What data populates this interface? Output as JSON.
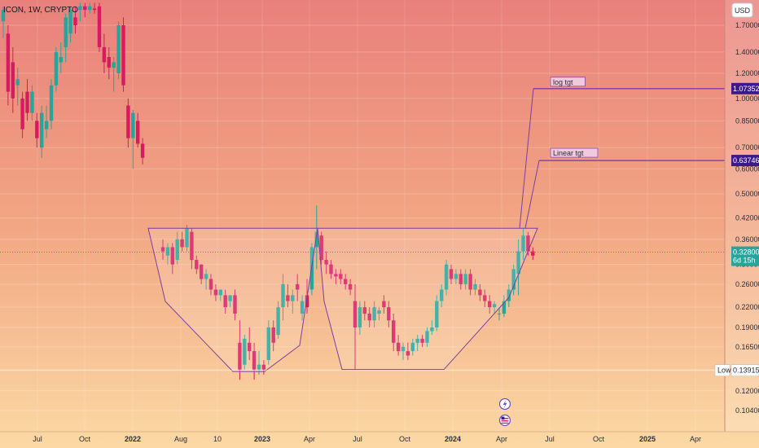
{
  "header": {
    "title": "ICON, 1W, CRYPTO",
    "currency": "USD"
  },
  "colors": {
    "up": "#26a69a",
    "down": "#d81b60",
    "pattern": "#7b3fa0",
    "tag_bg": "#3c1a8c",
    "price_tag": "#26a69a"
  },
  "chart_data": {
    "type": "candlestick",
    "title": "ICON, 1W, CRYPTO",
    "y_scale": "log",
    "ylim": [
      0.0955,
      2.0
    ],
    "y_ticks": [
      "1.70000",
      "1.40000",
      "1.20000",
      "1.00000",
      "0.85000",
      "0.70000",
      "0.60000",
      "0.50000",
      "0.42000",
      "0.36000",
      "0.30000",
      "0.26000",
      "0.22000",
      "0.19000",
      "0.16500",
      "0.14000",
      "0.12000",
      "0.10400"
    ],
    "x_ticks": [
      {
        "label": "Jul",
        "bold": false
      },
      {
        "label": "Oct",
        "bold": false
      },
      {
        "label": "2022",
        "bold": true
      },
      {
        "label": "Aug",
        "bold": false
      },
      {
        "label": "10",
        "bold": false
      },
      {
        "label": "2023",
        "bold": true
      },
      {
        "label": "Apr",
        "bold": false
      },
      {
        "label": "Jul",
        "bold": false
      },
      {
        "label": "Oct",
        "bold": false
      },
      {
        "label": "2024",
        "bold": true
      },
      {
        "label": "Apr",
        "bold": false
      },
      {
        "label": "Jul",
        "bold": false
      },
      {
        "label": "Oct",
        "bold": false
      },
      {
        "label": "2025",
        "bold": true
      },
      {
        "label": "Apr",
        "bold": false
      }
    ],
    "segments": [
      {
        "name": "2021-2022 decline",
        "candles": [
          [
            1.75,
            1.95,
            1.55,
            1.9
          ],
          [
            1.6,
            1.7,
            0.95,
            1.05
          ],
          [
            1.3,
            1.45,
            0.9,
            1.0
          ],
          [
            1.1,
            1.25,
            0.95,
            1.15
          ],
          [
            1.0,
            1.05,
            0.75,
            0.8
          ],
          [
            1.05,
            1.15,
            0.85,
            0.9
          ],
          [
            0.9,
            1.1,
            0.85,
            1.05
          ],
          [
            0.85,
            0.9,
            0.7,
            0.75
          ],
          [
            0.7,
            0.95,
            0.65,
            0.9
          ],
          [
            0.8,
            0.95,
            0.75,
            0.85
          ],
          [
            0.85,
            1.15,
            0.8,
            1.1
          ],
          [
            1.1,
            1.45,
            1.05,
            1.4
          ],
          [
            1.3,
            1.5,
            1.2,
            1.35
          ],
          [
            1.45,
            1.85,
            1.3,
            1.8
          ],
          [
            1.6,
            1.95,
            1.5,
            1.9
          ],
          [
            1.8,
            1.95,
            1.6,
            1.7
          ],
          [
            1.9,
            2.0,
            1.75,
            1.95
          ],
          [
            1.95,
            2.0,
            1.8,
            1.9
          ],
          [
            1.9,
            2.0,
            1.85,
            1.95
          ],
          [
            1.92,
            2.0,
            1.85,
            1.9
          ],
          [
            1.95,
            2.0,
            1.4,
            1.45
          ],
          [
            1.45,
            1.6,
            1.2,
            1.3
          ],
          [
            1.35,
            1.45,
            1.15,
            1.25
          ],
          [
            1.25,
            1.35,
            1.05,
            1.3
          ],
          [
            1.2,
            1.75,
            1.15,
            1.7
          ],
          [
            1.7,
            1.8,
            1.05,
            1.1
          ],
          [
            0.95,
            1.0,
            0.7,
            0.75
          ],
          [
            0.75,
            0.92,
            0.6,
            0.9
          ],
          [
            0.85,
            0.9,
            0.7,
            0.72
          ],
          [
            0.72,
            0.75,
            0.62,
            0.65
          ]
        ]
      },
      {
        "name": "cup and handle",
        "candles": [
          [
            0.34,
            0.36,
            0.31,
            0.33
          ],
          [
            0.32,
            0.35,
            0.3,
            0.34
          ],
          [
            0.34,
            0.35,
            0.28,
            0.3
          ],
          [
            0.31,
            0.38,
            0.3,
            0.36
          ],
          [
            0.36,
            0.38,
            0.33,
            0.34
          ],
          [
            0.34,
            0.4,
            0.33,
            0.39
          ],
          [
            0.38,
            0.39,
            0.29,
            0.31
          ],
          [
            0.31,
            0.32,
            0.28,
            0.29
          ],
          [
            0.3,
            0.3,
            0.26,
            0.27
          ],
          [
            0.27,
            0.29,
            0.25,
            0.28
          ],
          [
            0.27,
            0.28,
            0.24,
            0.25
          ],
          [
            0.25,
            0.26,
            0.23,
            0.24
          ],
          [
            0.24,
            0.25,
            0.23,
            0.25
          ],
          [
            0.24,
            0.25,
            0.21,
            0.22
          ],
          [
            0.23,
            0.24,
            0.22,
            0.24
          ],
          [
            0.24,
            0.25,
            0.2,
            0.21
          ],
          [
            0.17,
            0.2,
            0.13,
            0.14
          ],
          [
            0.145,
            0.18,
            0.14,
            0.175
          ],
          [
            0.17,
            0.19,
            0.15,
            0.16
          ],
          [
            0.16,
            0.17,
            0.13,
            0.14
          ],
          [
            0.14,
            0.16,
            0.135,
            0.145
          ],
          [
            0.145,
            0.15,
            0.135,
            0.14
          ],
          [
            0.15,
            0.2,
            0.145,
            0.19
          ],
          [
            0.19,
            0.2,
            0.16,
            0.17
          ],
          [
            0.18,
            0.23,
            0.175,
            0.22
          ],
          [
            0.22,
            0.28,
            0.2,
            0.26
          ],
          [
            0.24,
            0.26,
            0.22,
            0.23
          ],
          [
            0.23,
            0.25,
            0.21,
            0.24
          ],
          [
            0.26,
            0.28,
            0.23,
            0.25
          ],
          [
            0.21,
            0.24,
            0.2,
            0.23
          ],
          [
            0.24,
            0.27,
            0.21,
            0.22
          ],
          [
            0.25,
            0.35,
            0.24,
            0.34
          ],
          [
            0.34,
            0.46,
            0.29,
            0.38
          ],
          [
            0.37,
            0.38,
            0.3,
            0.31
          ],
          [
            0.31,
            0.33,
            0.28,
            0.3
          ],
          [
            0.3,
            0.31,
            0.27,
            0.28
          ],
          [
            0.28,
            0.29,
            0.26,
            0.275
          ],
          [
            0.28,
            0.29,
            0.26,
            0.27
          ],
          [
            0.27,
            0.28,
            0.25,
            0.26
          ],
          [
            0.26,
            0.27,
            0.24,
            0.25
          ],
          [
            0.23,
            0.26,
            0.14,
            0.19
          ],
          [
            0.19,
            0.23,
            0.18,
            0.22
          ],
          [
            0.22,
            0.23,
            0.2,
            0.21
          ],
          [
            0.21,
            0.22,
            0.19,
            0.2
          ],
          [
            0.2,
            0.23,
            0.19,
            0.22
          ],
          [
            0.21,
            0.22,
            0.2,
            0.215
          ],
          [
            0.23,
            0.24,
            0.21,
            0.22
          ],
          [
            0.22,
            0.23,
            0.19,
            0.2
          ],
          [
            0.2,
            0.21,
            0.16,
            0.17
          ],
          [
            0.17,
            0.18,
            0.155,
            0.16
          ],
          [
            0.16,
            0.17,
            0.15,
            0.165
          ],
          [
            0.16,
            0.17,
            0.15,
            0.155
          ],
          [
            0.16,
            0.175,
            0.155,
            0.17
          ],
          [
            0.17,
            0.18,
            0.16,
            0.175
          ],
          [
            0.175,
            0.18,
            0.165,
            0.17
          ],
          [
            0.17,
            0.19,
            0.165,
            0.185
          ],
          [
            0.185,
            0.2,
            0.18,
            0.19
          ],
          [
            0.19,
            0.24,
            0.185,
            0.23
          ],
          [
            0.23,
            0.26,
            0.22,
            0.25
          ],
          [
            0.25,
            0.31,
            0.24,
            0.3
          ],
          [
            0.29,
            0.3,
            0.26,
            0.27
          ],
          [
            0.27,
            0.29,
            0.26,
            0.28
          ],
          [
            0.28,
            0.29,
            0.25,
            0.26
          ],
          [
            0.26,
            0.29,
            0.25,
            0.28
          ],
          [
            0.28,
            0.29,
            0.24,
            0.25
          ],
          [
            0.25,
            0.27,
            0.24,
            0.26
          ],
          [
            0.25,
            0.26,
            0.23,
            0.24
          ],
          [
            0.24,
            0.25,
            0.22,
            0.23
          ],
          [
            0.23,
            0.24,
            0.21,
            0.22
          ],
          [
            0.22,
            0.23,
            0.21,
            0.225
          ],
          [
            0.21,
            0.22,
            0.2,
            0.21
          ],
          [
            0.21,
            0.24,
            0.205,
            0.23
          ],
          [
            0.23,
            0.26,
            0.22,
            0.25
          ],
          [
            0.25,
            0.3,
            0.24,
            0.29
          ],
          [
            0.28,
            0.36,
            0.24,
            0.33
          ],
          [
            0.33,
            0.39,
            0.31,
            0.37
          ],
          [
            0.37,
            0.38,
            0.32,
            0.33
          ],
          [
            0.33,
            0.34,
            0.31,
            0.32
          ]
        ]
      }
    ],
    "annotations": {
      "rim_price": 0.39,
      "cup_left_bottom": 0.138,
      "cup_right_bottom": 0.14,
      "log_target": {
        "label": "log tgt",
        "price": 1.07352,
        "tag": "1.07352"
      },
      "linear_target": {
        "label": "Linear tgt",
        "price": 0.63746,
        "tag": "0.63746"
      },
      "low_line": {
        "label": "Low",
        "price": 0.13915,
        "tag": "0.13915"
      },
      "current": {
        "price": 0.328,
        "tag": "0.32800",
        "countdown": "6d 15h"
      }
    }
  }
}
